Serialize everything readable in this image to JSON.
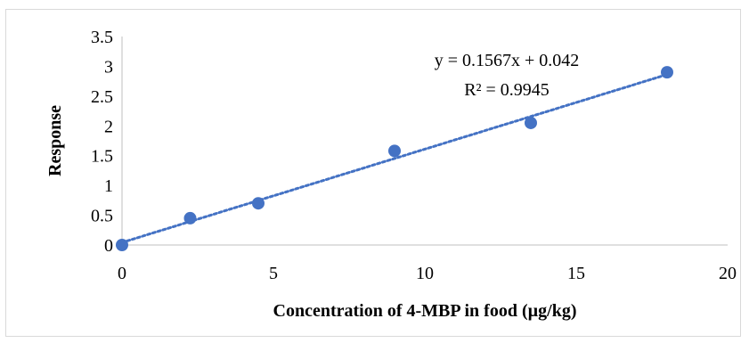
{
  "chart_data": {
    "type": "scatter",
    "xlabel": "Concentration of 4-MBP in food (µg/kg)",
    "ylabel": "Response",
    "xlim": [
      0,
      20
    ],
    "ylim": [
      0,
      3.5
    ],
    "x_ticks": [
      "0",
      "5",
      "10",
      "15",
      "20"
    ],
    "y_ticks": [
      "0",
      "0.5",
      "1",
      "1.5",
      "2",
      "2.5",
      "3",
      "3.5"
    ],
    "grid": false,
    "series": [
      {
        "x": [
          0,
          2.25,
          4.5,
          9,
          13.5,
          18
        ],
        "y": [
          0,
          0.45,
          0.7,
          1.58,
          2.05,
          2.9
        ],
        "color": "#4472c4"
      }
    ],
    "trendline": {
      "slope": 0.1567,
      "intercept": 0.042,
      "style": "dotted",
      "color": "#4472c4",
      "equation_label": "y = 0.1567x + 0.042",
      "r2_label": "R² = 0.9945"
    }
  }
}
